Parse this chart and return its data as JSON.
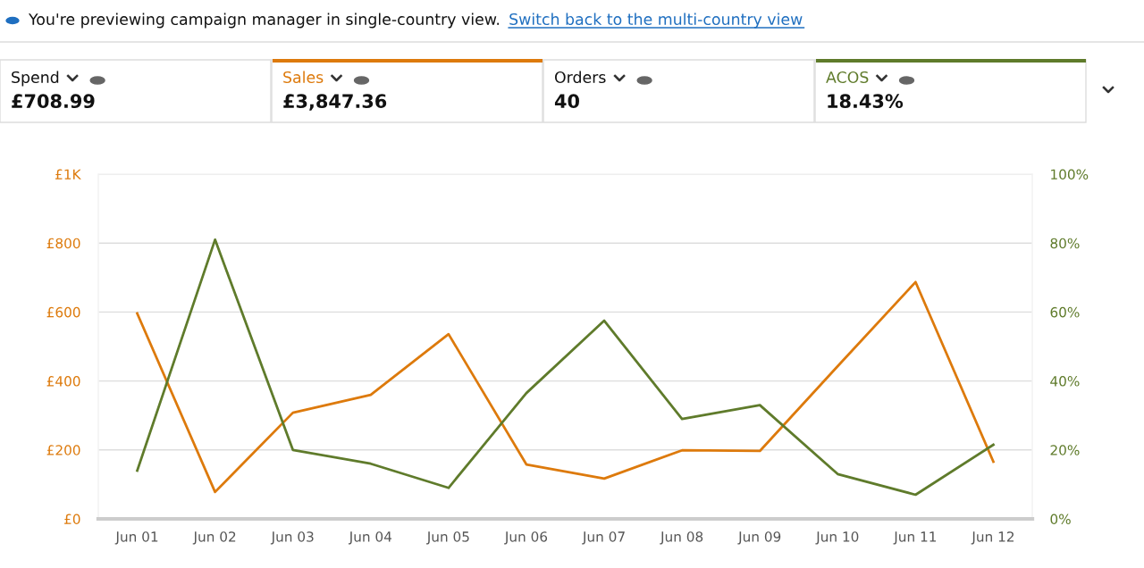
{
  "chart_data": {
    "type": "line",
    "annotations": [
      "You're previewing campaign manager in single-country view.",
      "Switch back to the multi-country view",
      "Spend",
      "£708.99",
      "£3,847.36",
      "Orders",
      "40",
      "18.43%"
    ],
    "categories": [
      "Jun 01",
      "Jun 02",
      "Jun 03",
      "Jun 04",
      "Jun 05",
      "Jun 06",
      "Jun 07",
      "Jun 08",
      "Jun 09",
      "Jun 10",
      "Jun 11",
      "Jun 12"
    ],
    "series": [
      {
        "name": "Sales",
        "color": "#dd7a0c",
        "values": [
          596,
          78,
          308,
          360,
          536,
          158,
          117,
          199,
          197,
          443,
          687,
          166
        ]
      },
      {
        "name": "ACOS",
        "color": "#5f7b2b",
        "axis": "y2",
        "values": [
          14,
          81,
          20,
          16,
          9,
          36.5,
          57.5,
          29,
          33,
          13,
          7,
          21.5
        ]
      }
    ],
    "ylim": [
      0,
      1000
    ],
    "yticks": [
      {
        "value": 0,
        "label": "£0"
      },
      {
        "value": 200,
        "label": "£200"
      },
      {
        "value": 400,
        "label": "£400"
      },
      {
        "value": 600,
        "label": "£600"
      },
      {
        "value": 800,
        "label": "£800"
      },
      {
        "value": 1000,
        "label": "£1K"
      }
    ],
    "y2lim": [
      0,
      100
    ],
    "y2ticks": [
      {
        "value": 0,
        "label": "0%"
      },
      {
        "value": 20,
        "label": "20%"
      },
      {
        "value": 40,
        "label": "40%"
      },
      {
        "value": 60,
        "label": "60%"
      },
      {
        "value": 80,
        "label": "80%"
      },
      {
        "value": 100,
        "label": "100%"
      }
    ],
    "grid": "y",
    "marker": "none",
    "line_style": "solid",
    "legend": "top"
  }
}
